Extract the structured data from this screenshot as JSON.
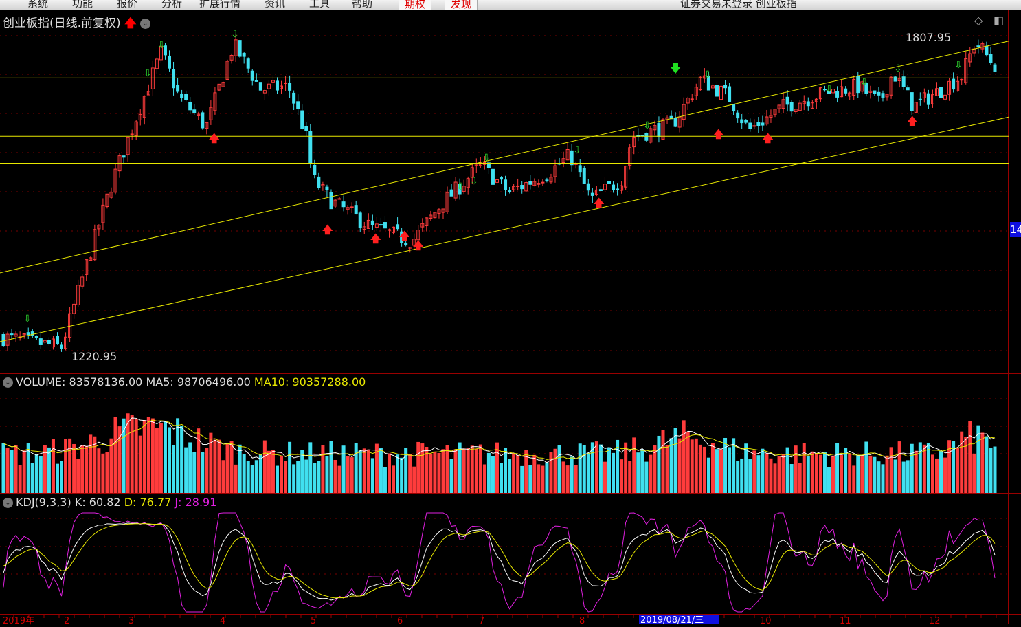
{
  "menubar": {
    "items": [
      "系统",
      "功能",
      "报价",
      "分析",
      "扩展行情",
      "资讯",
      "工具",
      "帮助"
    ],
    "highlight_items": [
      "期权",
      "发现"
    ],
    "window_title": "证券交易未登录 创业板指"
  },
  "main_chart": {
    "title": "创业板指(日线.前复权)",
    "title_arrow": "red-up-arrow-icon",
    "max_label": "1807.95",
    "min_label": "1220.95",
    "max_price": 1807.95,
    "min_price": 1220.95,
    "price_tag": "14",
    "horizontal_lines": [
      1725,
      1619,
      1570
    ],
    "trend_lines": [
      {
        "start": 1371,
        "end": 1792
      },
      {
        "start": 1246,
        "end": 1654
      }
    ],
    "approx_close_path": [
      1254,
      1236,
      1404,
      1542,
      1642,
      1773,
      1692,
      1636,
      1786,
      1704,
      1710,
      1623,
      1542,
      1504,
      1454,
      1429,
      1492,
      1567,
      1517,
      1554,
      1585,
      1504,
      1542,
      1617,
      1642,
      1723,
      1692,
      1630,
      1673,
      1698,
      1710,
      1679,
      1735,
      1673,
      1704,
      1729,
      1792,
      1748
    ],
    "colors": {
      "up": "#ff3c3c",
      "down": "#40e0f0",
      "lines": "#e8e800"
    }
  },
  "volume": {
    "label": "VOLUME: 83578136.00",
    "ma5": "MA5: 98706496.00",
    "ma10": "MA10: 90357288.00"
  },
  "kdj": {
    "label": "KDJ(9,3,3)",
    "k": "K: 60.82",
    "d": "D: 76.77",
    "j": "J: 28.91"
  },
  "date_axis": {
    "labels": [
      "2019年",
      "2",
      "3",
      "4",
      "5",
      "6",
      "7",
      "8",
      "10",
      "11",
      "12"
    ],
    "cursor_date": "2019/08/21/三"
  }
}
